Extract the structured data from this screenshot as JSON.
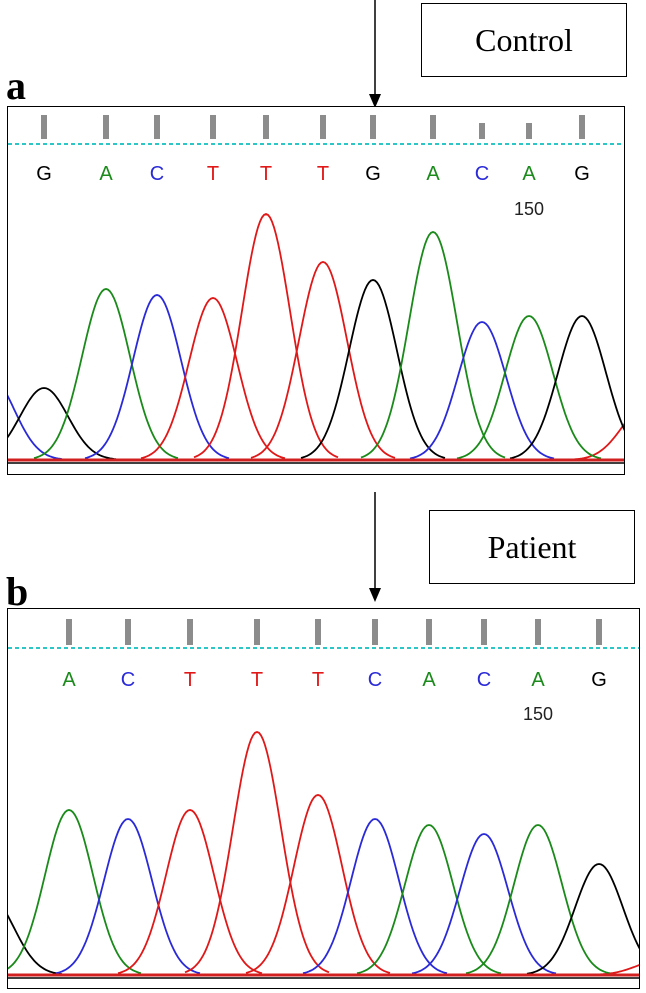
{
  "colors": {
    "A": "#1a8a1a",
    "C": "#2a2ad8",
    "G": "#000000",
    "T": "#e01818",
    "baseline": "#d22020",
    "dotted": "#2cc6c6",
    "bar": "#8c8c8c"
  },
  "panels": [
    {
      "letter": "a",
      "label": "Control",
      "bases": [
        "G",
        "A",
        "C",
        "T",
        "T",
        "T",
        "G",
        "A",
        "C",
        "A",
        "G"
      ],
      "position_marker": "150",
      "peak_heights": [
        0.24,
        0.57,
        0.55,
        0.54,
        0.82,
        0.66,
        0.6,
        0.76,
        0.46,
        0.48,
        0.48
      ]
    },
    {
      "letter": "b",
      "label": "Patient",
      "bases": [
        "A",
        "C",
        "T",
        "T",
        "T",
        "C",
        "A",
        "C",
        "A",
        "G"
      ],
      "position_marker": "150",
      "peak_heights": [
        0.55,
        0.52,
        0.55,
        0.81,
        0.6,
        0.52,
        0.5,
        0.47,
        0.5,
        0.37
      ]
    }
  ]
}
